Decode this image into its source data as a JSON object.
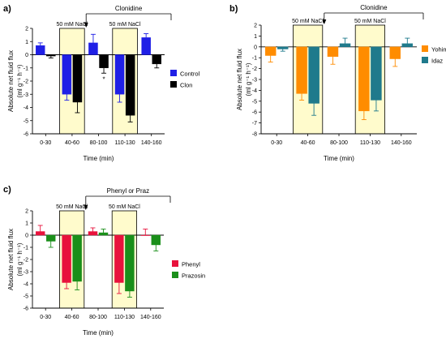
{
  "colors": {
    "highlight": "#fffbcc",
    "highlight_border": "#000000",
    "control": "#1f1fe6",
    "clon": "#000000",
    "yohim": "#ff8c00",
    "idaz": "#1f7a8c",
    "phenyl": "#e8123c",
    "prazosin": "#1a8f1a",
    "errorbar": "#000000"
  },
  "chart_data": [
    {
      "panel_label": "a)",
      "type": "bar",
      "categories": [
        "0-30",
        "40-60",
        "80-100",
        "110-130",
        "140-160"
      ],
      "xlabel": "Time (min)",
      "ylabel_line1": "Absolute net fluid flux",
      "ylabel_line2": "(ml g⁻¹ h⁻¹)",
      "ylim": [
        -6,
        2
      ],
      "yticks": [
        2,
        1,
        0,
        -1,
        -2,
        -3,
        -4,
        -5,
        -6
      ],
      "highlight_categories": [
        1,
        3
      ],
      "highlight_label": "50 mM NaCl",
      "treatment_label": "Clonidine",
      "treatment_start_category": 2,
      "legend_position": "right",
      "series": [
        {
          "name": "Control",
          "color_key": "control",
          "values": [
            0.7,
            -3.0,
            0.9,
            -3.0,
            1.3
          ],
          "errors": [
            0.2,
            0.45,
            0.65,
            0.6,
            0.3
          ]
        },
        {
          "name": "Clon",
          "color_key": "clon",
          "values": [
            -0.1,
            -3.6,
            -1.0,
            -4.6,
            -0.7
          ],
          "errors": [
            0.15,
            0.8,
            0.4,
            0.5,
            0.3
          ]
        }
      ],
      "annotations": [
        {
          "text": "*",
          "series": 1,
          "category": 2
        }
      ]
    },
    {
      "panel_label": "b)",
      "type": "bar",
      "categories": [
        "0-30",
        "40-60",
        "80-100",
        "110-130",
        "140-160"
      ],
      "xlabel": "Time (min)",
      "ylabel_line1": "Absolute net fluid flux",
      "ylabel_line2": "(ml g⁻¹ h⁻¹)",
      "ylim": [
        -8,
        2
      ],
      "yticks": [
        2,
        1,
        0,
        -1,
        -2,
        -3,
        -4,
        -5,
        -6,
        -7,
        -8
      ],
      "highlight_categories": [
        1,
        3
      ],
      "highlight_label": "50 mM NaCl",
      "treatment_label": "Clonidine",
      "treatment_start_category": 2,
      "legend_position": "right",
      "series": [
        {
          "name": "Yohim",
          "color_key": "yohim",
          "values": [
            -0.8,
            -4.3,
            -0.9,
            -5.9,
            -1.1
          ],
          "errors": [
            0.6,
            0.6,
            0.7,
            0.8,
            0.7
          ]
        },
        {
          "name": "Idaz",
          "color_key": "idaz",
          "values": [
            -0.2,
            -5.2,
            0.3,
            -4.9,
            0.3
          ],
          "errors": [
            0.2,
            1.1,
            0.5,
            1.0,
            0.5
          ]
        }
      ],
      "annotations": []
    },
    {
      "panel_label": "c)",
      "type": "bar",
      "categories": [
        "0-30",
        "40-60",
        "80-100",
        "110-130",
        "140-160"
      ],
      "xlabel": "Time (min)",
      "ylabel_line1": "Absolute net fluid flux",
      "ylabel_line2": "(ml g⁻¹ h⁻¹)",
      "ylim": [
        -6,
        2
      ],
      "yticks": [
        2,
        1,
        0,
        -1,
        -2,
        -3,
        -4,
        -5,
        -6
      ],
      "highlight_categories": [
        1,
        3
      ],
      "highlight_label": "50 mM NaCl",
      "treatment_label": "Phenyl or Praz",
      "treatment_start_category": 2,
      "legend_position": "right",
      "series": [
        {
          "name": "Phenyl",
          "color_key": "phenyl",
          "values": [
            0.3,
            -3.9,
            0.3,
            -3.9,
            0.0
          ],
          "errors": [
            0.5,
            0.5,
            0.3,
            0.9,
            0.5
          ]
        },
        {
          "name": "Prazosin",
          "color_key": "prazosin",
          "values": [
            -0.5,
            -3.8,
            0.2,
            -4.6,
            -0.8
          ],
          "errors": [
            0.5,
            0.7,
            0.3,
            0.5,
            0.5
          ]
        }
      ],
      "annotations": []
    }
  ]
}
